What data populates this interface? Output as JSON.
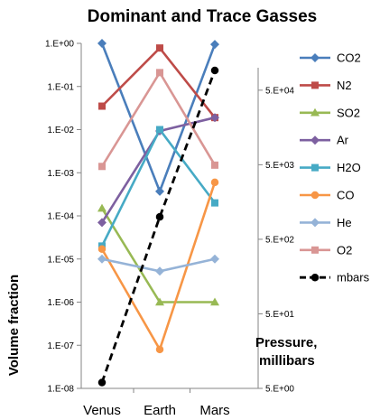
{
  "chart_data": {
    "type": "line",
    "title": "Dominant  and Trace Gasses",
    "categories": [
      "Venus",
      "Earth",
      "Mars"
    ],
    "ylabel": "Volume fraction",
    "y2label": "Pressure, millibars",
    "y_scale": "log",
    "ylim": [
      1e-08,
      1
    ],
    "y_ticks": [
      "1.E+00",
      "1.E-01",
      "1.E-02",
      "1.E-03",
      "1.E-04",
      "1.E-05",
      "1.E-06",
      "1.E-07",
      "1.E-08"
    ],
    "y2_scale": "log",
    "y2lim": [
      5,
      100000
    ],
    "y2_ticks": [
      {
        "label": "5.E+04",
        "value": 50000
      },
      {
        "label": "5.E+03",
        "value": 5000
      },
      {
        "label": "5.E+02",
        "value": 500
      },
      {
        "label": "5.E+01",
        "value": 50
      },
      {
        "label": "5.E+00",
        "value": 5
      }
    ],
    "legend_position": "right",
    "series": [
      {
        "name": "CO2",
        "color": "#4A7EBB",
        "marker": "diamond",
        "axis": "left",
        "values": [
          1.0,
          0.00037,
          0.95
        ]
      },
      {
        "name": "N2",
        "color": "#BE4B48",
        "marker": "square",
        "axis": "left",
        "values": [
          0.035,
          0.78,
          0.019
        ]
      },
      {
        "name": "SO2",
        "color": "#98B954",
        "marker": "triangle",
        "axis": "left",
        "values": [
          0.00015,
          1e-06,
          1e-06
        ]
      },
      {
        "name": "Ar",
        "color": "#7D60A0",
        "marker": "diamond",
        "axis": "left",
        "values": [
          7e-05,
          0.0093,
          0.019
        ]
      },
      {
        "name": "H2O",
        "color": "#46AAC5",
        "marker": "square",
        "axis": "left",
        "values": [
          2e-05,
          0.01,
          0.0002
        ]
      },
      {
        "name": "CO",
        "color": "#F79646",
        "marker": "circle",
        "axis": "left",
        "values": [
          1.7e-05,
          8e-08,
          0.0006
        ]
      },
      {
        "name": "He",
        "color": "#95B3D7",
        "marker": "diamond",
        "axis": "left",
        "values": [
          1e-05,
          5.2e-06,
          1e-05
        ]
      },
      {
        "name": "O2",
        "color": "#D99694",
        "marker": "square",
        "axis": "left",
        "values": [
          0.0014,
          0.21,
          0.0015
        ]
      },
      {
        "name": "mbars",
        "color": "#000000",
        "marker": "circle",
        "dashed": true,
        "axis": "right",
        "values": [
          6,
          1000,
          92000
        ]
      }
    ]
  }
}
